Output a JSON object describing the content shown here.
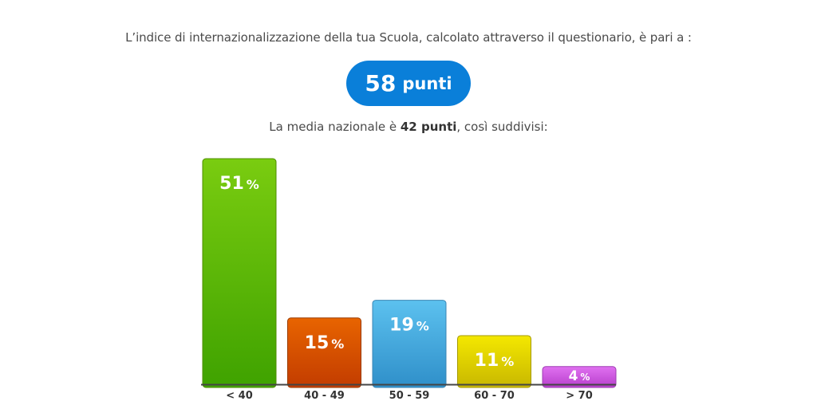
{
  "intro_text": "L’indice di internazionalizzazione della tua Scuola, calcolato attraverso il questionario, è pari a :",
  "score": {
    "value": "58",
    "unit": "punti",
    "color": "#0a7fd9"
  },
  "average": {
    "prefix": "La media nazionale è ",
    "value": "42 punti",
    "suffix": ", così suddivisi:"
  },
  "chart_data": {
    "type": "bar",
    "categories": [
      "< 40",
      "40 - 49",
      "50 - 59",
      "60 - 70",
      "> 70"
    ],
    "values": [
      51,
      15,
      19,
      11,
      4
    ],
    "value_unit": "%",
    "ylim": [
      0,
      51
    ],
    "colors": [
      {
        "top": "#7acc10",
        "bottom": "#3fa200",
        "stroke": "#4d8e00"
      },
      {
        "top": "#e86400",
        "bottom": "#c23c00",
        "stroke": "#9a3b00"
      },
      {
        "top": "#5cc1ef",
        "bottom": "#2f8fc9",
        "stroke": "#3a86b4"
      },
      {
        "top": "#f4e800",
        "bottom": "#c8b700",
        "stroke": "#a59a00"
      },
      {
        "top": "#e070f0",
        "bottom": "#b73fcc",
        "stroke": "#9f3db3"
      }
    ],
    "grid": false,
    "legend": "none"
  }
}
